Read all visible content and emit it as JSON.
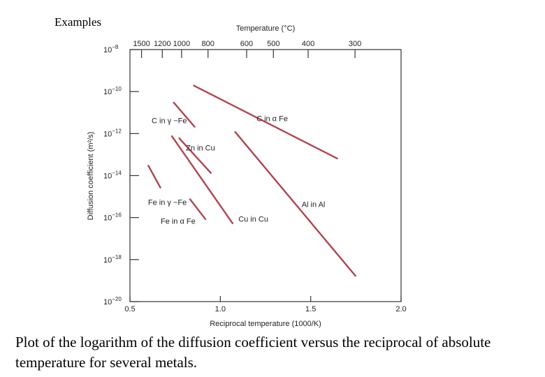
{
  "heading": "Examples",
  "caption": "Plot of the logarithm of the diffusion coefficient versus the reciprocal of absolute temperature for several metals.",
  "chart_data": {
    "type": "line",
    "title": "",
    "xlabel": "Reciprocal temperature (1000/K)",
    "ylabel": "Diffusion coefficient (m²/s)",
    "top_axis_label": "Temperature (°C)",
    "xlim": [
      0.5,
      2.0
    ],
    "ylim_log10": [
      -20,
      -8
    ],
    "y_scale": "log",
    "grid": false,
    "line_color": "#b0444f",
    "x_ticks": [
      {
        "value": 0.5,
        "label": "0.5"
      },
      {
        "value": 1.0,
        "label": "1.0"
      },
      {
        "value": 1.5,
        "label": "1.5"
      },
      {
        "value": 2.0,
        "label": "2.0"
      }
    ],
    "y_ticks": [
      {
        "value": -8,
        "label": "10",
        "exp": "−8"
      },
      {
        "value": -10,
        "label": "10",
        "exp": "−10"
      },
      {
        "value": -12,
        "label": "10",
        "exp": "−12"
      },
      {
        "value": -14,
        "label": "10",
        "exp": "−14"
      },
      {
        "value": -16,
        "label": "10",
        "exp": "−16"
      },
      {
        "value": -18,
        "label": "10",
        "exp": "−18"
      },
      {
        "value": -20,
        "label": "10",
        "exp": "−20"
      }
    ],
    "top_ticks": [
      {
        "celsius": 1500,
        "label": "1500"
      },
      {
        "celsius": 1200,
        "label": "1200"
      },
      {
        "celsius": 1000,
        "label": "1000"
      },
      {
        "celsius": 800,
        "label": "800"
      },
      {
        "celsius": 600,
        "label": "600"
      },
      {
        "celsius": 500,
        "label": "500"
      },
      {
        "celsius": 400,
        "label": "400"
      },
      {
        "celsius": 300,
        "label": "300"
      }
    ],
    "series": [
      {
        "name": "C in α Fe",
        "x": [
          0.85,
          1.65
        ],
        "y_log10": [
          -9.7,
          -13.2
        ]
      },
      {
        "name": "C in γ−Fe",
        "x": [
          0.74,
          0.86
        ],
        "y_log10": [
          -10.5,
          -11.7
        ]
      },
      {
        "name": "Zn in Cu",
        "x": [
          0.77,
          0.95
        ],
        "y_log10": [
          -12.2,
          -13.9
        ]
      },
      {
        "name": "Fe in γ−Fe",
        "x": [
          0.6,
          0.67
        ],
        "y_log10": [
          -13.5,
          -14.6
        ]
      },
      {
        "name": "Fe in α Fe",
        "x": [
          0.83,
          0.92
        ],
        "y_log10": [
          -15.1,
          -16.1
        ]
      },
      {
        "name": "Cu in Cu",
        "x": [
          0.73,
          1.07
        ],
        "y_log10": [
          -12.1,
          -16.3
        ]
      },
      {
        "name": "Al in Al",
        "x": [
          1.08,
          1.75
        ],
        "y_log10": [
          -11.9,
          -18.8
        ]
      }
    ],
    "series_labels": [
      {
        "series": "C in α Fe",
        "text": "C in α   Fe",
        "x": 1.2,
        "y_log10": -11.4
      },
      {
        "series": "C in γ−Fe",
        "text": "C in γ −Fe",
        "x": 0.62,
        "y_log10": -11.5
      },
      {
        "series": "Zn in Cu",
        "text": "Zn in Cu",
        "x": 0.81,
        "y_log10": -12.8
      },
      {
        "series": "Fe in γ−Fe",
        "text": "Fe in γ −Fe",
        "x": 0.6,
        "y_log10": -15.4
      },
      {
        "series": "Fe in α Fe",
        "text": "Fe in α    Fe",
        "x": 0.67,
        "y_log10": -16.3
      },
      {
        "series": "Cu in Cu",
        "text": "Cu in Cu",
        "x": 1.1,
        "y_log10": -16.2
      },
      {
        "series": "Al in Al",
        "text": "Al in Al",
        "x": 1.45,
        "y_log10": -15.5
      }
    ]
  }
}
